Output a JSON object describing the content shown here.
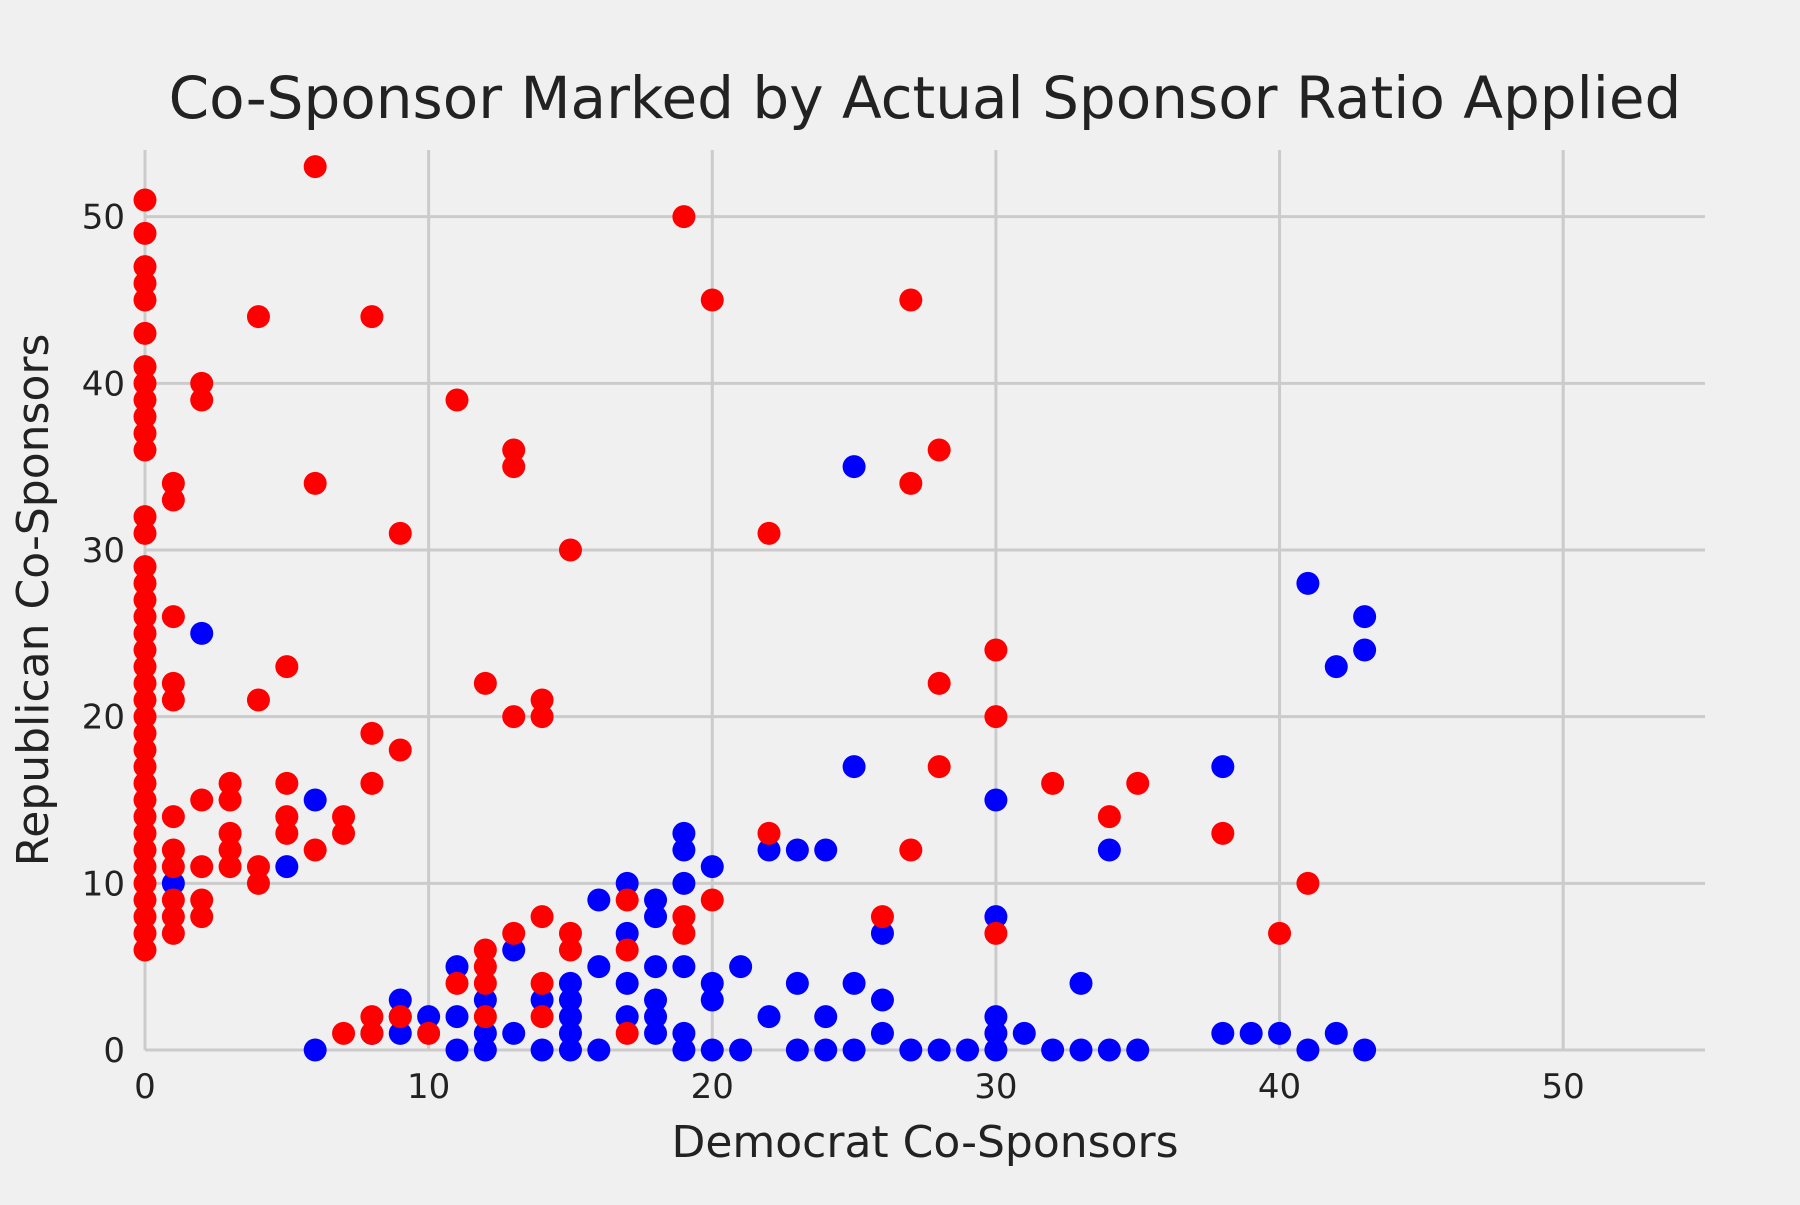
{
  "chart_data": {
    "type": "scatter",
    "title": "Co-Sponsor Marked by Actual Sponsor Ratio Applied",
    "xlabel": "Democrat Co-Sponsors",
    "ylabel": "Republican Co-Sponsors",
    "xlim": [
      0,
      55
    ],
    "ylim": [
      0,
      54
    ],
    "xticks": [
      0,
      10,
      20,
      30,
      40,
      50
    ],
    "yticks": [
      0,
      10,
      20,
      30,
      40,
      50
    ],
    "grid": true,
    "legend": "none",
    "series": [
      {
        "color": "#0000ff",
        "points": [
          [
            1,
            10
          ],
          [
            2,
            25
          ],
          [
            5,
            11
          ],
          [
            6,
            15
          ],
          [
            6,
            0
          ],
          [
            8,
            1
          ],
          [
            9,
            1
          ],
          [
            9,
            2
          ],
          [
            9,
            3
          ],
          [
            10,
            2
          ],
          [
            11,
            5
          ],
          [
            11,
            2
          ],
          [
            11,
            0
          ],
          [
            12,
            3
          ],
          [
            12,
            1
          ],
          [
            12,
            0
          ],
          [
            13,
            6
          ],
          [
            13,
            1
          ],
          [
            14,
            0
          ],
          [
            14,
            3
          ],
          [
            15,
            4
          ],
          [
            15,
            3
          ],
          [
            15,
            2
          ],
          [
            15,
            1
          ],
          [
            15,
            0
          ],
          [
            16,
            9
          ],
          [
            16,
            5
          ],
          [
            16,
            0
          ],
          [
            17,
            10
          ],
          [
            17,
            7
          ],
          [
            17,
            4
          ],
          [
            17,
            2
          ],
          [
            18,
            9
          ],
          [
            18,
            8
          ],
          [
            18,
            5
          ],
          [
            18,
            3
          ],
          [
            18,
            2
          ],
          [
            18,
            1
          ],
          [
            19,
            13
          ],
          [
            19,
            12
          ],
          [
            19,
            10
          ],
          [
            19,
            5
          ],
          [
            19,
            1
          ],
          [
            19,
            0
          ],
          [
            20,
            11
          ],
          [
            20,
            4
          ],
          [
            20,
            3
          ],
          [
            20,
            0
          ],
          [
            21,
            5
          ],
          [
            21,
            0
          ],
          [
            22,
            12
          ],
          [
            22,
            2
          ],
          [
            23,
            12
          ],
          [
            23,
            4
          ],
          [
            23,
            0
          ],
          [
            24,
            12
          ],
          [
            24,
            2
          ],
          [
            24,
            0
          ],
          [
            25,
            35
          ],
          [
            25,
            17
          ],
          [
            25,
            4
          ],
          [
            25,
            0
          ],
          [
            26,
            7
          ],
          [
            26,
            3
          ],
          [
            26,
            1
          ],
          [
            27,
            0
          ],
          [
            28,
            0
          ],
          [
            29,
            0
          ],
          [
            30,
            15
          ],
          [
            30,
            8
          ],
          [
            30,
            2
          ],
          [
            30,
            1
          ],
          [
            30,
            0
          ],
          [
            31,
            1
          ],
          [
            32,
            0
          ],
          [
            33,
            4
          ],
          [
            33,
            0
          ],
          [
            34,
            12
          ],
          [
            34,
            0
          ],
          [
            35,
            0
          ],
          [
            38,
            17
          ],
          [
            38,
            1
          ],
          [
            39,
            1
          ],
          [
            40,
            1
          ],
          [
            41,
            28
          ],
          [
            41,
            0
          ],
          [
            42,
            23
          ],
          [
            42,
            1
          ],
          [
            43,
            26
          ],
          [
            43,
            24
          ],
          [
            43,
            0
          ]
        ]
      },
      {
        "color": "#ff0000",
        "points": [
          [
            0,
            51
          ],
          [
            0,
            49
          ],
          [
            0,
            47
          ],
          [
            0,
            46
          ],
          [
            0,
            45
          ],
          [
            0,
            43
          ],
          [
            0,
            41
          ],
          [
            0,
            40
          ],
          [
            0,
            39
          ],
          [
            0,
            38
          ],
          [
            0,
            37
          ],
          [
            0,
            36
          ],
          [
            0,
            32
          ],
          [
            0,
            31
          ],
          [
            0,
            29
          ],
          [
            0,
            28
          ],
          [
            0,
            27
          ],
          [
            0,
            26
          ],
          [
            0,
            25
          ],
          [
            0,
            24
          ],
          [
            0,
            23
          ],
          [
            0,
            22
          ],
          [
            0,
            21
          ],
          [
            0,
            20
          ],
          [
            0,
            19
          ],
          [
            0,
            18
          ],
          [
            0,
            17
          ],
          [
            0,
            16
          ],
          [
            0,
            15
          ],
          [
            0,
            14
          ],
          [
            0,
            13
          ],
          [
            0,
            12
          ],
          [
            0,
            11
          ],
          [
            0,
            10
          ],
          [
            0,
            9
          ],
          [
            0,
            8
          ],
          [
            0,
            7
          ],
          [
            0,
            6
          ],
          [
            1,
            34
          ],
          [
            1,
            33
          ],
          [
            1,
            26
          ],
          [
            1,
            22
          ],
          [
            1,
            21
          ],
          [
            1,
            14
          ],
          [
            1,
            12
          ],
          [
            1,
            11
          ],
          [
            1,
            9
          ],
          [
            1,
            8
          ],
          [
            1,
            7
          ],
          [
            2,
            40
          ],
          [
            2,
            39
          ],
          [
            2,
            15
          ],
          [
            2,
            11
          ],
          [
            2,
            9
          ],
          [
            2,
            8
          ],
          [
            3,
            16
          ],
          [
            3,
            15
          ],
          [
            3,
            13
          ],
          [
            3,
            12
          ],
          [
            3,
            11
          ],
          [
            4,
            44
          ],
          [
            4,
            21
          ],
          [
            4,
            11
          ],
          [
            4,
            10
          ],
          [
            5,
            23
          ],
          [
            5,
            16
          ],
          [
            5,
            14
          ],
          [
            5,
            13
          ],
          [
            6,
            53
          ],
          [
            6,
            34
          ],
          [
            6,
            12
          ],
          [
            7,
            14
          ],
          [
            7,
            13
          ],
          [
            7,
            1
          ],
          [
            8,
            44
          ],
          [
            8,
            19
          ],
          [
            8,
            16
          ],
          [
            8,
            2
          ],
          [
            8,
            1
          ],
          [
            9,
            31
          ],
          [
            9,
            18
          ],
          [
            9,
            2
          ],
          [
            10,
            1
          ],
          [
            11,
            39
          ],
          [
            11,
            4
          ],
          [
            12,
            22
          ],
          [
            12,
            6
          ],
          [
            12,
            5
          ],
          [
            12,
            4
          ],
          [
            12,
            2
          ],
          [
            13,
            36
          ],
          [
            13,
            35
          ],
          [
            13,
            20
          ],
          [
            13,
            7
          ],
          [
            14,
            21
          ],
          [
            14,
            20
          ],
          [
            14,
            8
          ],
          [
            14,
            4
          ],
          [
            14,
            2
          ],
          [
            15,
            30
          ],
          [
            15,
            7
          ],
          [
            15,
            6
          ],
          [
            17,
            9
          ],
          [
            17,
            6
          ],
          [
            17,
            1
          ],
          [
            19,
            50
          ],
          [
            19,
            8
          ],
          [
            19,
            7
          ],
          [
            20,
            45
          ],
          [
            20,
            9
          ],
          [
            22,
            31
          ],
          [
            22,
            13
          ],
          [
            26,
            8
          ],
          [
            27,
            45
          ],
          [
            27,
            34
          ],
          [
            27,
            12
          ],
          [
            28,
            36
          ],
          [
            28,
            22
          ],
          [
            28,
            17
          ],
          [
            30,
            24
          ],
          [
            30,
            20
          ],
          [
            30,
            7
          ],
          [
            32,
            16
          ],
          [
            34,
            14
          ],
          [
            35,
            16
          ],
          [
            38,
            13
          ],
          [
            40,
            7
          ],
          [
            41,
            10
          ]
        ]
      }
    ]
  }
}
